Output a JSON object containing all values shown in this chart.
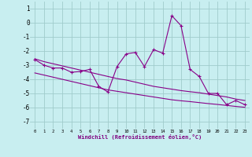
{
  "xlabel": "Windchill (Refroidissement éolien,°C)",
  "bg_color": "#c8eef0",
  "grid_color": "#a0cccc",
  "line_color": "#880088",
  "x_data": [
    0,
    1,
    2,
    3,
    4,
    5,
    6,
    7,
    8,
    9,
    10,
    11,
    12,
    13,
    14,
    15,
    16,
    17,
    18,
    19,
    20,
    21,
    22,
    23
  ],
  "y_main": [
    -2.6,
    -3.0,
    -3.2,
    -3.2,
    -3.5,
    -3.45,
    -3.3,
    -4.5,
    -4.9,
    -3.1,
    -2.2,
    -2.1,
    -3.1,
    -1.9,
    -2.15,
    0.5,
    -0.2,
    -3.3,
    -3.8,
    -5.0,
    -5.0,
    -5.8,
    -5.5,
    -5.8
  ],
  "y_trend1": [
    -2.55,
    -2.75,
    -2.9,
    -3.05,
    -3.2,
    -3.35,
    -3.5,
    -3.65,
    -3.8,
    -3.95,
    -4.05,
    -4.2,
    -4.35,
    -4.5,
    -4.6,
    -4.7,
    -4.8,
    -4.88,
    -4.95,
    -5.05,
    -5.15,
    -5.25,
    -5.4,
    -5.5
  ],
  "y_trend2": [
    -3.55,
    -3.7,
    -3.85,
    -4.0,
    -4.15,
    -4.3,
    -4.45,
    -4.6,
    -4.75,
    -4.85,
    -4.95,
    -5.05,
    -5.15,
    -5.25,
    -5.35,
    -5.45,
    -5.52,
    -5.58,
    -5.65,
    -5.72,
    -5.78,
    -5.85,
    -5.92,
    -5.98
  ],
  "ylim": [
    -7.5,
    1.5
  ],
  "xlim": [
    -0.5,
    23.5
  ],
  "yticks": [
    1,
    0,
    -1,
    -2,
    -3,
    -4,
    -5,
    -6,
    -7
  ],
  "xticks": [
    0,
    1,
    2,
    3,
    4,
    5,
    6,
    7,
    8,
    9,
    10,
    11,
    12,
    13,
    14,
    15,
    16,
    17,
    18,
    19,
    20,
    21,
    22,
    23
  ]
}
